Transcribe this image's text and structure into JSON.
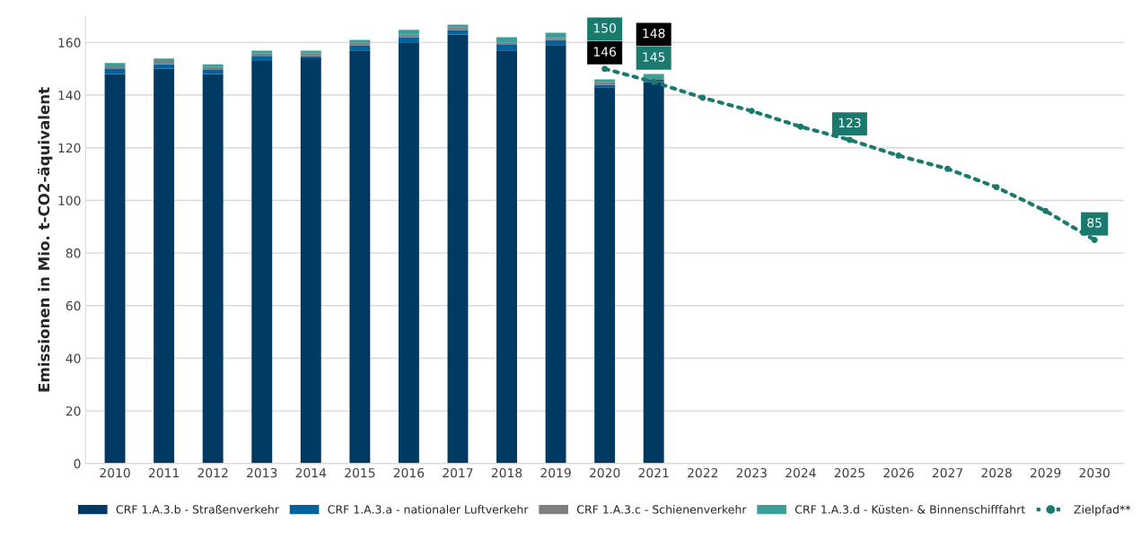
{
  "chart_data": {
    "type": "bar",
    "stacked": true,
    "ylabel": "Emissionen in Mio. t-CO2-äquivalent",
    "categories": [
      "2010",
      "2011",
      "2012",
      "2013",
      "2014",
      "2015",
      "2016",
      "2017",
      "2018",
      "2019",
      "2020",
      "2021",
      "2022",
      "2023",
      "2024",
      "2025",
      "2026",
      "2027",
      "2028",
      "2029",
      "2030"
    ],
    "series": [
      {
        "name": "CRF 1.A.3.b - Straßenverkehr",
        "color": "#003a63",
        "values": [
          148,
          150,
          148,
          153,
          154,
          157,
          160,
          163,
          157,
          159,
          143,
          145,
          null,
          null,
          null,
          null,
          null,
          null,
          null,
          null,
          null
        ]
      },
      {
        "name": "CRF 1.A.3.a - nationaler Luftverkehr",
        "color": "#0063a0",
        "values": [
          2.2,
          1.7,
          1.6,
          1.9,
          0.8,
          1.9,
          2,
          1.7,
          2.1,
          1.9,
          0.9,
          0.8,
          null,
          null,
          null,
          null,
          null,
          null,
          null,
          null,
          null
        ]
      },
      {
        "name": "CRF 1.A.3.c - Schienenverkehr",
        "color": "#7f7f7f",
        "values": [
          1.1,
          1.3,
          1.1,
          0.9,
          1,
          1.1,
          0.9,
          1.1,
          0.9,
          0.8,
          1,
          0.7,
          null,
          null,
          null,
          null,
          null,
          null,
          null,
          null,
          null
        ]
      },
      {
        "name": "CRF 1.A.3.d - Küsten- & Binnenschifffahrt",
        "color": "#3a9e9a",
        "values": [
          0.9,
          0.9,
          1,
          1.1,
          1.1,
          1,
          1.9,
          1,
          2,
          2,
          1.1,
          1.5,
          null,
          null,
          null,
          null,
          null,
          null,
          null,
          null,
          null
        ]
      },
      {
        "name": "Zielpfad**",
        "type": "line",
        "color": "#1a7a6e",
        "marker": "circle",
        "line_style": "dotted",
        "values": [
          null,
          null,
          null,
          null,
          null,
          null,
          null,
          null,
          null,
          null,
          150,
          145,
          139,
          134,
          128,
          123,
          117,
          112,
          105,
          96,
          85
        ],
        "value_labels": [
          null,
          null,
          null,
          null,
          null,
          null,
          null,
          null,
          null,
          null,
          "150",
          "145",
          null,
          null,
          null,
          "123",
          null,
          null,
          null,
          null,
          "85"
        ]
      }
    ],
    "totals": [
      null,
      null,
      null,
      null,
      null,
      null,
      null,
      null,
      null,
      null,
      "146",
      "148",
      null,
      null,
      null,
      null,
      null,
      null,
      null,
      null,
      null
    ],
    "ylim": [
      0,
      170
    ],
    "yticks": [
      0,
      20,
      40,
      60,
      80,
      100,
      120,
      140,
      160
    ],
    "grid": "y",
    "legend": "bottom"
  }
}
